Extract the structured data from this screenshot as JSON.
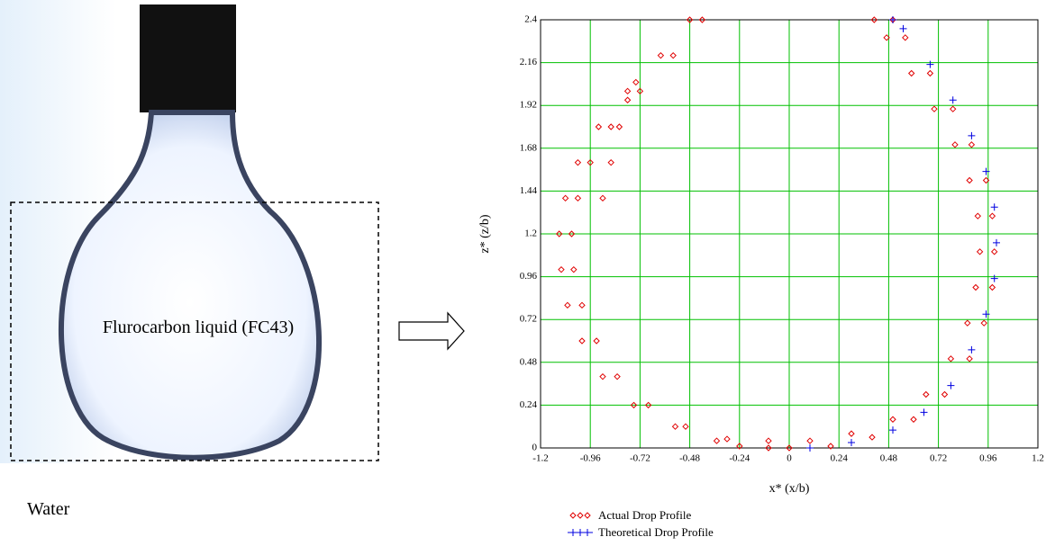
{
  "photo": {
    "label": "Flurocarbon liquid (FC43)",
    "medium": "Water"
  },
  "chart_data": {
    "type": "scatter",
    "xlabel": "x* (x/b)",
    "ylabel": "z* (z/b)",
    "xlim": [
      -1.2,
      1.2
    ],
    "ylim": [
      0,
      2.4
    ],
    "xticks": [
      -1.2,
      -0.96,
      -0.72,
      -0.48,
      -0.24,
      0,
      0.24,
      0.48,
      0.72,
      0.96,
      1.2
    ],
    "yticks": [
      0,
      0.24,
      0.48,
      0.72,
      0.96,
      1.2,
      1.44,
      1.68,
      1.92,
      2.16,
      2.4
    ],
    "grid": true,
    "legend": "bottom",
    "series": [
      {
        "name": "Actual Drop Profile",
        "color": "#e00000",
        "marker": "diamond",
        "x": [
          -0.48,
          -0.62,
          -0.78,
          -0.92,
          -1.02,
          -1.08,
          -1.11,
          -1.1,
          -1.07,
          -1.0,
          -0.9,
          -0.75,
          -0.55,
          -0.35,
          -0.24,
          -0.1,
          0,
          0.2,
          0.4,
          0.6,
          0.75,
          0.87,
          0.94,
          0.98,
          0.99,
          0.98,
          0.95,
          0.88,
          0.79,
          0.68,
          0.56,
          0.5,
          -0.42,
          -0.56,
          -0.72,
          -0.86,
          -0.96,
          -1.02,
          -1.05,
          -1.04,
          -1.0,
          -0.93,
          -0.83,
          -0.68,
          -0.5,
          -0.3,
          -0.1,
          0.1,
          0.3,
          0.5,
          0.66,
          0.78,
          0.86,
          0.9,
          0.92,
          0.91,
          0.87,
          0.8,
          0.7,
          0.59,
          0.47,
          0.41,
          -0.9,
          -0.86,
          -0.82,
          -0.78,
          -0.74
        ],
        "values": [
          2.4,
          2.2,
          2.0,
          1.8,
          1.6,
          1.4,
          1.2,
          1.0,
          0.8,
          0.6,
          0.4,
          0.24,
          0.12,
          0.04,
          0.01,
          0,
          0,
          0.01,
          0.06,
          0.16,
          0.3,
          0.5,
          0.7,
          0.9,
          1.1,
          1.3,
          1.5,
          1.7,
          1.9,
          2.1,
          2.3,
          2.4,
          2.4,
          2.2,
          2.0,
          1.8,
          1.6,
          1.4,
          1.2,
          1.0,
          0.8,
          0.6,
          0.4,
          0.24,
          0.12,
          0.05,
          0.04,
          0.04,
          0.08,
          0.16,
          0.3,
          0.5,
          0.7,
          0.9,
          1.1,
          1.3,
          1.5,
          1.7,
          1.9,
          2.1,
          2.3,
          2.4,
          1.4,
          1.6,
          1.8,
          1.95,
          2.05
        ]
      },
      {
        "name": "Theoretical Drop Profile",
        "color": "#0000e0",
        "marker": "plus",
        "x": [
          0.1,
          0.3,
          0.5,
          0.65,
          0.78,
          0.88,
          0.95,
          0.99,
          1.0,
          0.99,
          0.95,
          0.88,
          0.79,
          0.68,
          0.55,
          0.5
        ],
        "values": [
          0,
          0.03,
          0.1,
          0.2,
          0.35,
          0.55,
          0.75,
          0.95,
          1.15,
          1.35,
          1.55,
          1.75,
          1.95,
          2.15,
          2.35,
          2.4
        ]
      }
    ]
  }
}
